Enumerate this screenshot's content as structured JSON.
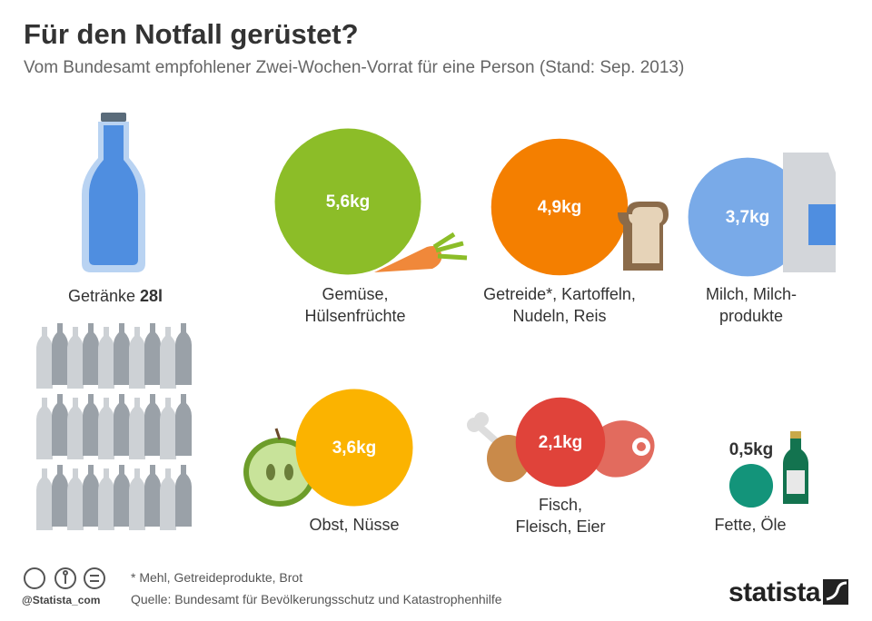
{
  "title": "Für den Notfall gerüstet?",
  "subtitle": "Vom Bundesamt empfohlener Zwei-Wochen-Vorrat für eine Person (Stand: Sep. 2013)",
  "drinks": {
    "name": "Getränke",
    "amount": "28l"
  },
  "chart_data": {
    "type": "bubble",
    "categories": [
      "Gemüse,\nHülsenfrüchte",
      "Getreide*, Kartoffeln,\nNudeln, Reis",
      "Milch, Milch-\nprodukte",
      "Obst, Nüsse",
      "Fisch,\nFleisch, Eier",
      "Fette, Öle"
    ],
    "values": [
      5.6,
      4.9,
      3.7,
      3.6,
      2.1,
      0.5
    ],
    "value_labels": [
      "5,6kg",
      "4,9kg",
      "3,7kg",
      "3,6kg",
      "2,1kg",
      "0,5kg"
    ],
    "colors": [
      "#8cbd28",
      "#f47f00",
      "#79aae8",
      "#fbb300",
      "#e0433a",
      "#13947a"
    ]
  },
  "footnote": "* Mehl, Getreideprodukte, Brot",
  "source": "Quelle: Bundesamt für Bevölkerungsschutz und Katastrophenhilfe",
  "handle": "@Statista_com",
  "logo": "statista"
}
